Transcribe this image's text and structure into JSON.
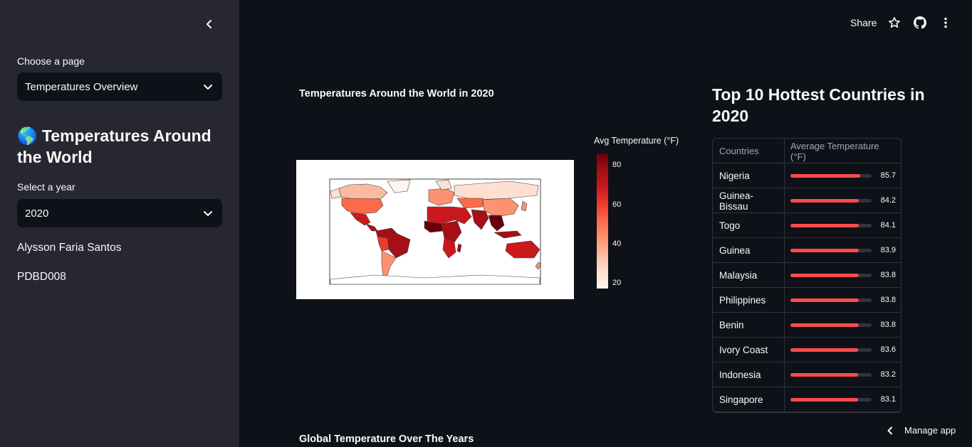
{
  "sidebar": {
    "page_label": "Choose a page",
    "page_selected": "Temperatures Overview",
    "title_emoji": "🌎",
    "title": "Temperatures Around the World",
    "year_label": "Select a year",
    "year_selected": "2020",
    "author": "Alysson Faria Santos",
    "code": "PDBD008"
  },
  "toolbar": {
    "share_label": "Share"
  },
  "map": {
    "title": "Temperatures Around the World in 2020",
    "colorbar_title": "Avg Temperature (°F)",
    "colorbar_ticks": [
      "80",
      "60",
      "40",
      "20"
    ],
    "colorscale": [
      "#fff5f0",
      "#fee0d2",
      "#fcbba1",
      "#fc9272",
      "#fb6a4a",
      "#ef3b2c",
      "#cb181d",
      "#a50f15",
      "#67000d"
    ]
  },
  "top10": {
    "title": "Top 10 Hottest Countries in 2020",
    "headers": [
      "Countries",
      "Average Temperature (°F)"
    ],
    "rows": [
      {
        "country": "Nigeria",
        "temp": "85.7"
      },
      {
        "country": "Guinea-Bissau",
        "temp": "84.2"
      },
      {
        "country": "Togo",
        "temp": "84.1"
      },
      {
        "country": "Guinea",
        "temp": "83.9"
      },
      {
        "country": "Malaysia",
        "temp": "83.8"
      },
      {
        "country": "Philippines",
        "temp": "83.8"
      },
      {
        "country": "Benin",
        "temp": "83.8"
      },
      {
        "country": "Ivory Coast",
        "temp": "83.6"
      },
      {
        "country": "Indonesia",
        "temp": "83.2"
      },
      {
        "country": "Singapore",
        "temp": "83.1"
      }
    ],
    "bar_max": 100
  },
  "bottom_title": "Global Temperature Over The Years",
  "manage_label": "Manage app",
  "colors": {
    "accent": "#ff4b4b",
    "background": "#0e1117",
    "sidebar": "#262730"
  }
}
